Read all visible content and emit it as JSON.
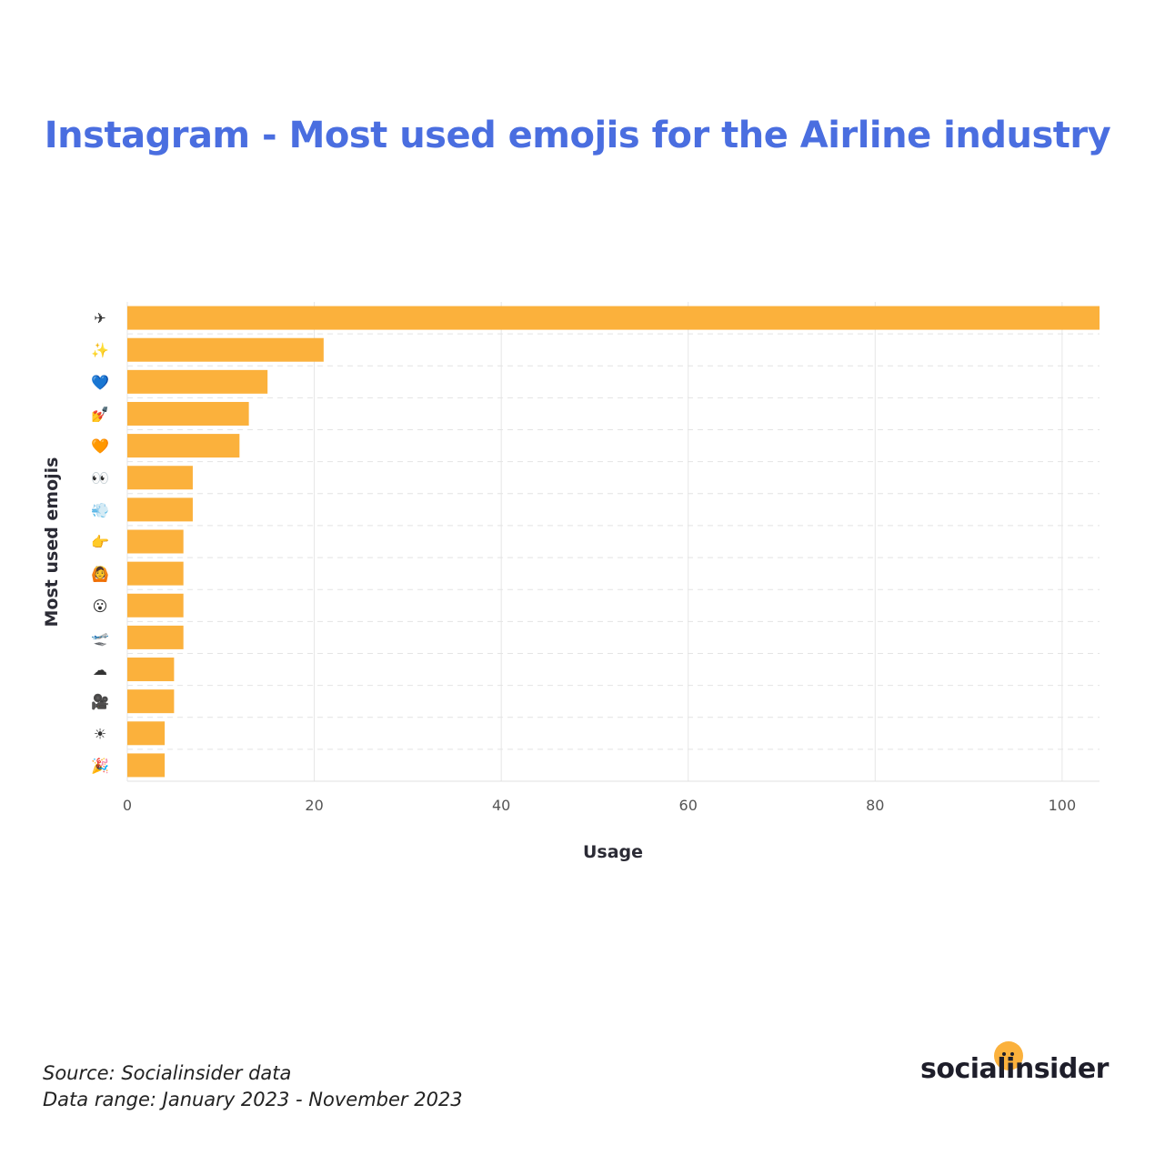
{
  "title": "Instagram - Most used emojis for the Airline industry",
  "footer": {
    "source": "Source: Socialinsider data",
    "range": "Data range: January 2023 - November 2023"
  },
  "logo": {
    "text": "socialinsider"
  },
  "colors": {
    "bar": "#fbb13c",
    "title": "#4a6ee0",
    "grid": "#e6e6e6"
  },
  "chart_data": {
    "type": "bar",
    "orientation": "horizontal",
    "xlabel": "Usage",
    "ylabel": "Most used emojis",
    "xlim": [
      0,
      104
    ],
    "xticks": [
      0,
      20,
      40,
      60,
      80,
      100
    ],
    "grid": true,
    "categories": [
      "✈",
      "✨",
      "💙",
      "💅",
      "🧡",
      "👀",
      "💨",
      "👉",
      "🙆",
      "😮",
      "🛫",
      "☁",
      "🎥",
      "☀",
      "🎉"
    ],
    "values": [
      104,
      21,
      15,
      13,
      12,
      7,
      7,
      6,
      6,
      6,
      6,
      5,
      5,
      4,
      4
    ]
  }
}
